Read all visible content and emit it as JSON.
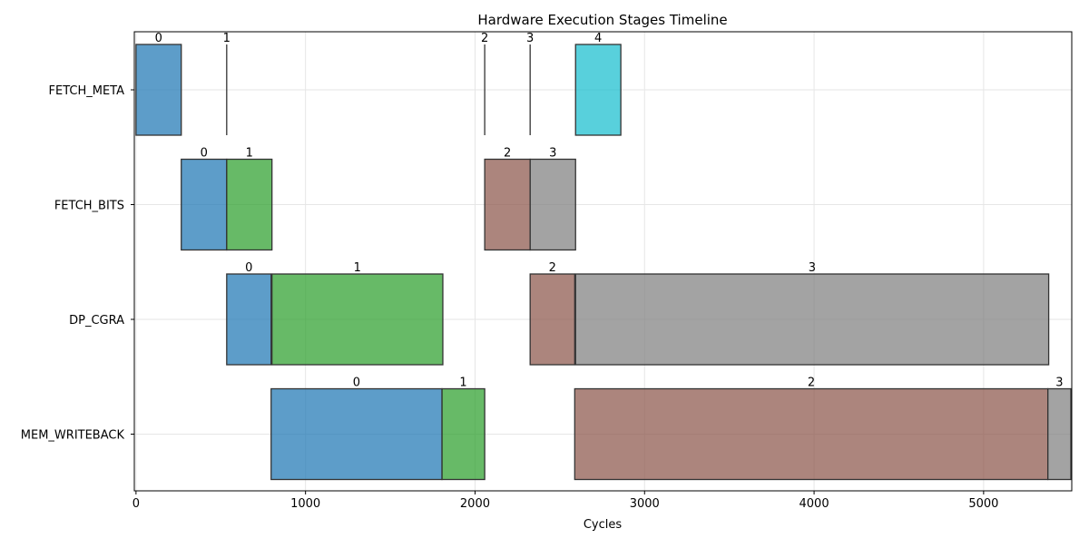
{
  "chart_data": {
    "type": "gantt",
    "title": "Hardware Execution Stages Timeline",
    "xlabel": "Cycles",
    "ylabel": "",
    "xlim": [
      -10,
      5520
    ],
    "xticks": [
      0,
      1000,
      2000,
      3000,
      4000,
      5000
    ],
    "grid": true,
    "colors": {
      "0": "#1f77b4",
      "1": "#2ca02c",
      "2": "#8c564b",
      "3": "#7f7f7f",
      "4": "#17becf"
    },
    "stages": [
      "FETCH_META",
      "FETCH_BITS",
      "DP_CGRA",
      "MEM_WRITEBACK"
    ],
    "tasks": [
      {
        "stage": "FETCH_META",
        "id": "0",
        "start": 0,
        "end": 267
      },
      {
        "stage": "FETCH_META",
        "id": "1",
        "start": 535,
        "end": 535
      },
      {
        "stage": "FETCH_META",
        "id": "2",
        "start": 2057,
        "end": 2057
      },
      {
        "stage": "FETCH_META",
        "id": "3",
        "start": 2325,
        "end": 2325
      },
      {
        "stage": "FETCH_META",
        "id": "4",
        "start": 2593,
        "end": 2860
      },
      {
        "stage": "FETCH_BITS",
        "id": "0",
        "start": 267,
        "end": 535
      },
      {
        "stage": "FETCH_BITS",
        "id": "1",
        "start": 535,
        "end": 802
      },
      {
        "stage": "FETCH_BITS",
        "id": "2",
        "start": 2057,
        "end": 2325
      },
      {
        "stage": "FETCH_BITS",
        "id": "3",
        "start": 2325,
        "end": 2593
      },
      {
        "stage": "DP_CGRA",
        "id": "0",
        "start": 535,
        "end": 797
      },
      {
        "stage": "DP_CGRA",
        "id": "1",
        "start": 802,
        "end": 1810
      },
      {
        "stage": "DP_CGRA",
        "id": "2",
        "start": 2325,
        "end": 2588
      },
      {
        "stage": "DP_CGRA",
        "id": "3",
        "start": 2593,
        "end": 5384
      },
      {
        "stage": "MEM_WRITEBACK",
        "id": "0",
        "start": 797,
        "end": 1805
      },
      {
        "stage": "MEM_WRITEBACK",
        "id": "1",
        "start": 1805,
        "end": 2057
      },
      {
        "stage": "MEM_WRITEBACK",
        "id": "2",
        "start": 2588,
        "end": 5379
      },
      {
        "stage": "MEM_WRITEBACK",
        "id": "3",
        "start": 5379,
        "end": 5515
      }
    ]
  }
}
